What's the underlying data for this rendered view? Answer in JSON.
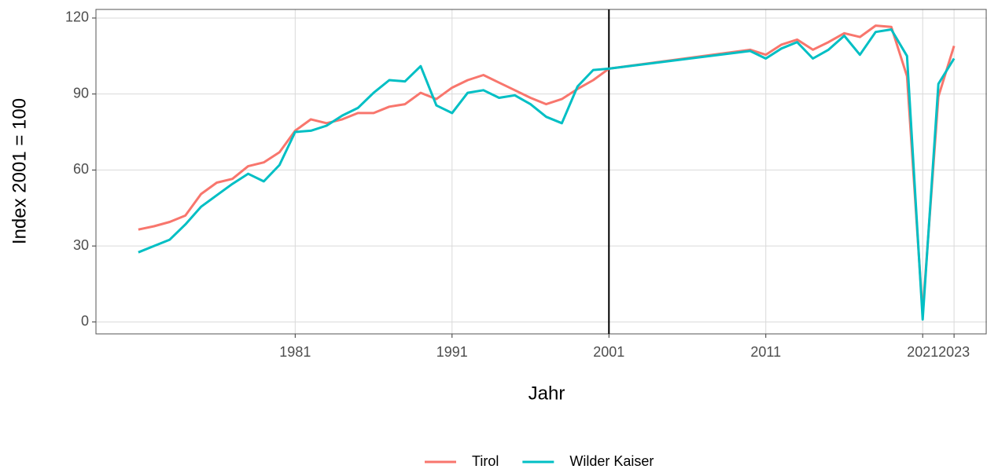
{
  "chart_data": {
    "type": "line",
    "x_label": "Jahr",
    "y_label": "Index 2001 = 100",
    "x": [
      1971,
      1972,
      1973,
      1974,
      1975,
      1976,
      1977,
      1978,
      1979,
      1980,
      1981,
      1982,
      1983,
      1984,
      1985,
      1986,
      1987,
      1988,
      1989,
      1990,
      1991,
      1992,
      1993,
      1994,
      1995,
      1996,
      1997,
      1998,
      1999,
      2000,
      2001,
      2010,
      2011,
      2012,
      2013,
      2014,
      2015,
      2016,
      2017,
      2018,
      2019,
      2020,
      2021,
      2022,
      2023
    ],
    "series": [
      {
        "name": "Tirol",
        "color": "#f8766d",
        "values": [
          36.5,
          37.8,
          39.5,
          42,
          50.5,
          55,
          56.5,
          61.5,
          63,
          67,
          75.5,
          80,
          78.5,
          80,
          82.5,
          82.5,
          85,
          86,
          90.5,
          88,
          92.5,
          95.5,
          97.5,
          94.5,
          91.5,
          88.5,
          86,
          88,
          92,
          95.5,
          100,
          107.5,
          105.5,
          109.5,
          111.5,
          107.5,
          110.5,
          114,
          112.5,
          117,
          116.5,
          97,
          3.5,
          89,
          109
        ]
      },
      {
        "name": "Wilder Kaiser",
        "color": "#00bfc4",
        "values": [
          27.5,
          30,
          32.5,
          38.5,
          45.5,
          50,
          54.5,
          58.5,
          55.5,
          62,
          75,
          75.5,
          77.5,
          81.5,
          84.5,
          90.5,
          95.5,
          95,
          101,
          85.5,
          82.5,
          90.5,
          91.5,
          88.5,
          89.5,
          86,
          81,
          78.5,
          93,
          99.5,
          100,
          107,
          104,
          108,
          110.5,
          104,
          107.5,
          113,
          105.5,
          114.5,
          115.5,
          105,
          1,
          94,
          104
        ]
      }
    ],
    "xlim": [
      1968.3,
      2025.1
    ],
    "xticks": [
      1981,
      1991,
      2001,
      2011,
      2021,
      2023
    ],
    "ylim": [
      -4.7,
      123.4
    ],
    "yticks": [
      0,
      30,
      60,
      90,
      120
    ],
    "vline_x": 2001,
    "grid": true,
    "legend": "bottom"
  }
}
